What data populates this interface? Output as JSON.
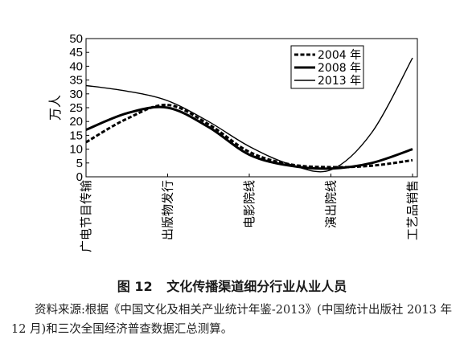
{
  "chart_data": {
    "type": "line",
    "ylabel": "万人",
    "ylim": [
      0,
      50
    ],
    "yticks": [
      0,
      5,
      10,
      15,
      20,
      25,
      30,
      35,
      40,
      45,
      50
    ],
    "categories": [
      "广电节目传输",
      "出版物发行",
      "电影院线",
      "演出院线",
      "工艺品销售"
    ],
    "legend_position": "top-right",
    "grid": false,
    "series": [
      {
        "name": "2004 年",
        "style": "dashed-bold",
        "points": [
          [
            0,
            12.5
          ],
          [
            0.5,
            21
          ],
          [
            1,
            26
          ],
          [
            1.5,
            19
          ],
          [
            2,
            9
          ],
          [
            2.5,
            4.5
          ],
          [
            3,
            3.5
          ],
          [
            3.5,
            4
          ],
          [
            4,
            6
          ]
        ]
      },
      {
        "name": "2008 年",
        "style": "solid-bold",
        "points": [
          [
            0,
            17
          ],
          [
            0.5,
            23
          ],
          [
            1,
            25
          ],
          [
            1.5,
            18
          ],
          [
            2,
            8
          ],
          [
            2.5,
            4
          ],
          [
            3,
            3
          ],
          [
            3.5,
            5
          ],
          [
            4,
            10
          ]
        ]
      },
      {
        "name": "2013 年",
        "style": "solid-thin",
        "points": [
          [
            0,
            33
          ],
          [
            0.5,
            31
          ],
          [
            1,
            27.5
          ],
          [
            1.5,
            20
          ],
          [
            2,
            11
          ],
          [
            2.5,
            4.5
          ],
          [
            3,
            2.5
          ],
          [
            3.5,
            16
          ],
          [
            4,
            43
          ]
        ]
      }
    ]
  },
  "caption": {
    "figure_no": "图 12",
    "title": "文化传播渠道细分行业从业人员"
  },
  "source_note": "资料来源:根据《中国文化及相关产业统计年鉴-2013》(中国统计出版社 2013 年 12 月)和三次全国经济普查数据汇总测算。"
}
